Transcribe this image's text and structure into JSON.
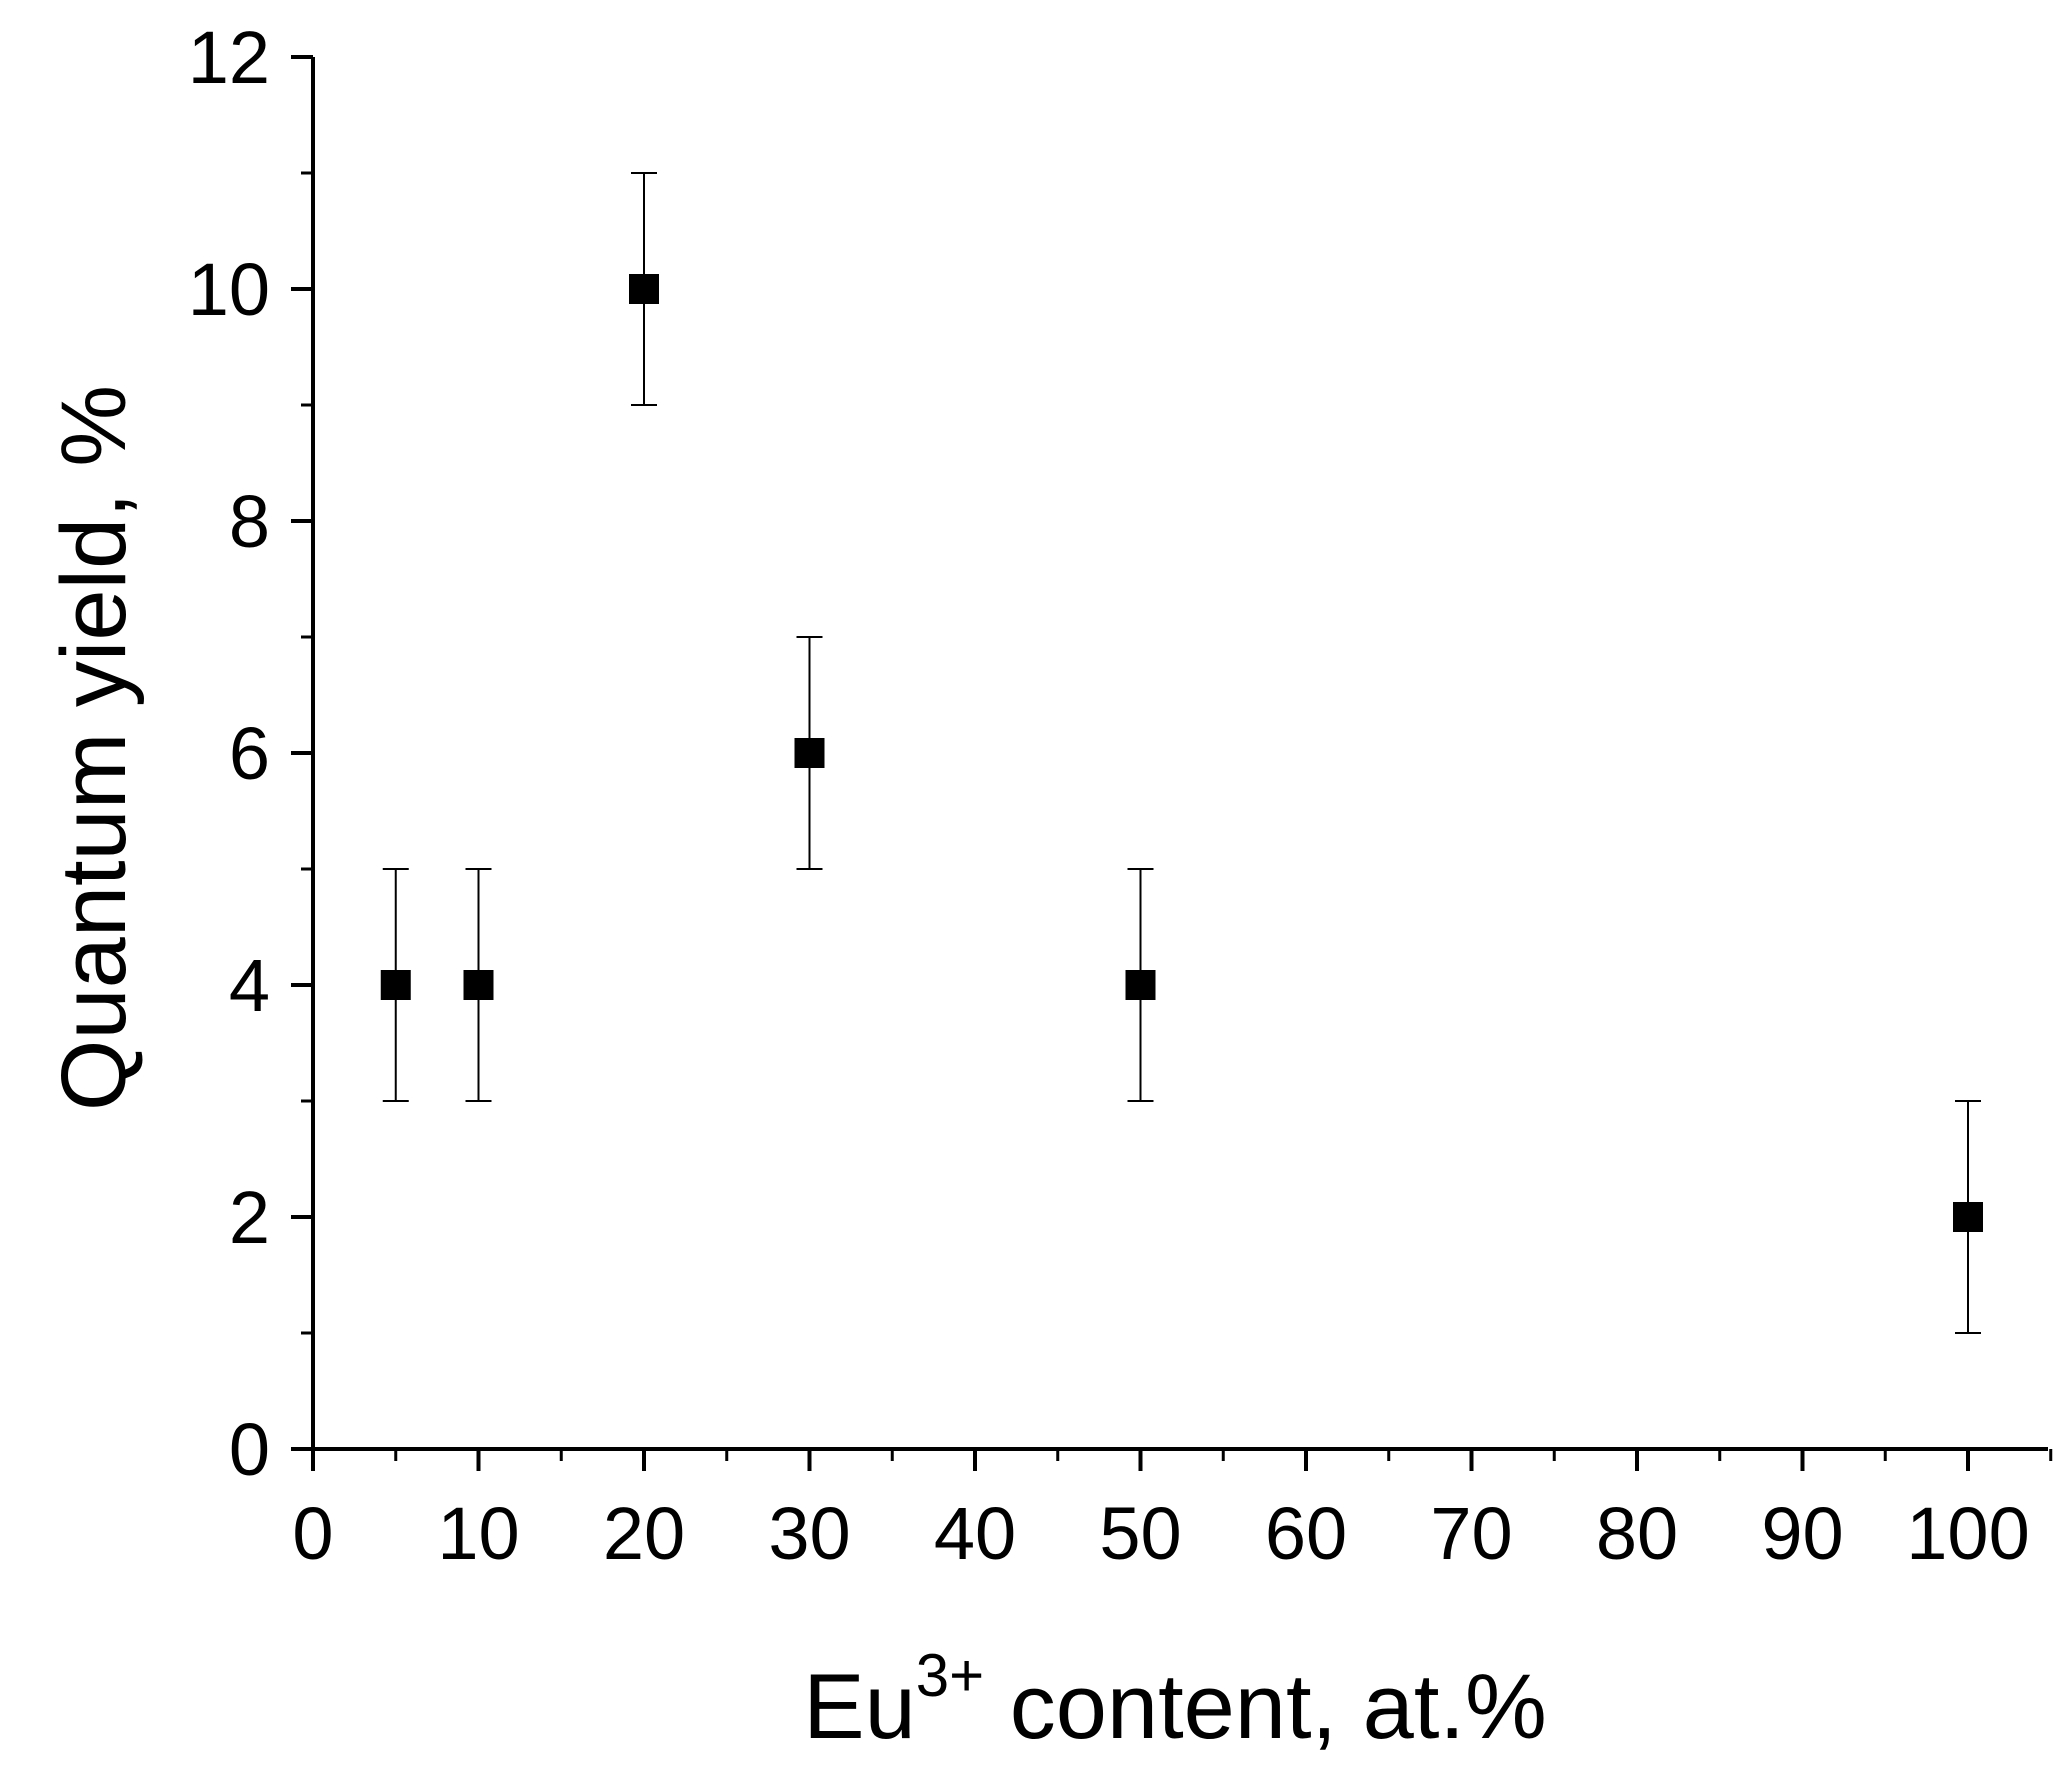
{
  "chart_data": {
    "type": "scatter",
    "title": "",
    "xlabel": {
      "base": "Eu",
      "sup": "3+",
      "rest": " content, at.%"
    },
    "ylabel": "Quantum yield,  %",
    "xlim": [
      0,
      100
    ],
    "ylim": [
      0,
      12
    ],
    "x_major_ticks": [
      0,
      10,
      20,
      30,
      40,
      50,
      60,
      70,
      80,
      90,
      100
    ],
    "x_tick_labels": [
      "0",
      "10",
      "20",
      "30",
      "40",
      "50",
      "60",
      "70",
      "80",
      "90",
      "100"
    ],
    "y_major_ticks": [
      0,
      2,
      4,
      6,
      8,
      10,
      12
    ],
    "y_tick_labels": [
      "0",
      "2",
      "4",
      "6",
      "8",
      "10",
      "12"
    ],
    "grid": false,
    "legend": "none",
    "marker": "square",
    "color": "#000000",
    "points": [
      {
        "x": 5,
        "y": 4,
        "err": 1
      },
      {
        "x": 10,
        "y": 4,
        "err": 1
      },
      {
        "x": 20,
        "y": 10,
        "err": 1
      },
      {
        "x": 30,
        "y": 6,
        "err": 1
      },
      {
        "x": 50,
        "y": 4,
        "err": 1
      },
      {
        "x": 100,
        "y": 2,
        "err": 1
      }
    ]
  }
}
